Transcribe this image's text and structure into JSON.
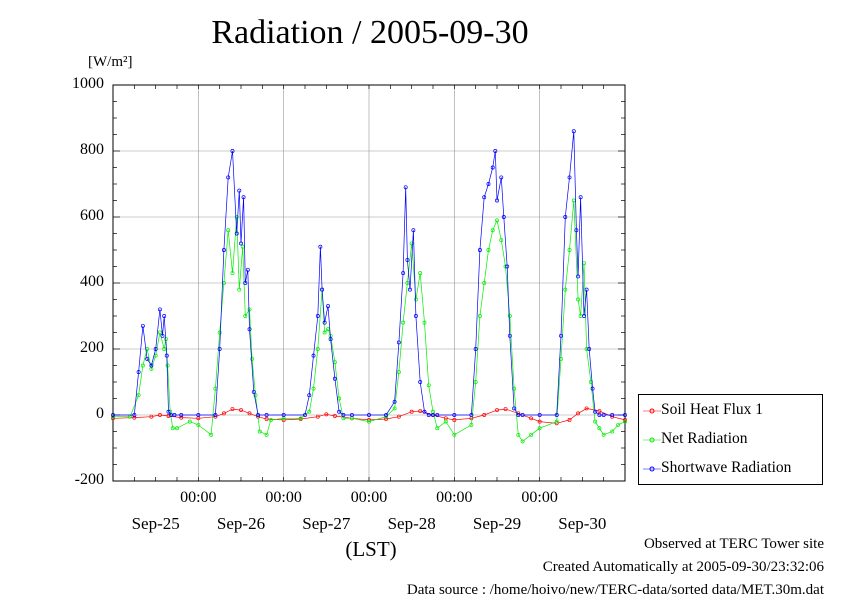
{
  "chart_data": {
    "type": "line",
    "title": "Radiation / 2005-09-30",
    "ylabel": "[W/m²]",
    "xlabel": "(LST)",
    "ylim": [
      -200,
      1000
    ],
    "yticks": [
      1000,
      800,
      600,
      400,
      200,
      0,
      -200
    ],
    "xlim_days": [
      0,
      6
    ],
    "x_time_labels": [
      "00:00",
      "00:00",
      "00:00",
      "00:00",
      "00:00"
    ],
    "x_date_labels": [
      "Sep-25",
      "Sep-26",
      "Sep-27",
      "Sep-28",
      "Sep-29",
      "Sep-30"
    ],
    "grid": true,
    "legend_position": "bottom-right, outside plot",
    "series": [
      {
        "name": "Soil Heat Flux 1",
        "color": "#ff0000",
        "x": [
          0.0,
          0.25,
          0.45,
          0.55,
          0.65,
          0.8,
          1.0,
          1.2,
          1.3,
          1.4,
          1.5,
          1.6,
          1.7,
          1.8,
          2.0,
          2.2,
          2.4,
          2.5,
          2.6,
          2.8,
          3.0,
          3.2,
          3.35,
          3.5,
          3.6,
          3.75,
          3.9,
          4.0,
          4.2,
          4.35,
          4.5,
          4.6,
          4.75,
          4.9,
          5.0,
          5.2,
          5.35,
          5.45,
          5.55,
          5.7,
          5.85,
          6.0
        ],
        "y": [
          -10,
          -8,
          -5,
          0,
          -3,
          -8,
          -10,
          -5,
          5,
          18,
          15,
          5,
          -5,
          -12,
          -15,
          -12,
          -5,
          2,
          -3,
          -10,
          -15,
          -12,
          -5,
          10,
          12,
          0,
          -10,
          -15,
          -10,
          0,
          15,
          18,
          5,
          -10,
          -20,
          -25,
          -15,
          5,
          20,
          12,
          -5,
          -15
        ]
      },
      {
        "name": "Net Radiation",
        "color": "#00ee00",
        "x": [
          0.0,
          0.2,
          0.3,
          0.35,
          0.4,
          0.45,
          0.5,
          0.55,
          0.6,
          0.62,
          0.64,
          0.67,
          0.7,
          0.75,
          0.9,
          1.0,
          1.15,
          1.2,
          1.25,
          1.3,
          1.35,
          1.4,
          1.45,
          1.48,
          1.52,
          1.55,
          1.6,
          1.63,
          1.67,
          1.72,
          1.8,
          1.85,
          2.0,
          2.2,
          2.3,
          2.35,
          2.4,
          2.45,
          2.48,
          2.52,
          2.55,
          2.6,
          2.65,
          2.7,
          2.8,
          3.0,
          3.2,
          3.3,
          3.35,
          3.4,
          3.45,
          3.5,
          3.55,
          3.6,
          3.65,
          3.7,
          3.75,
          3.8,
          3.9,
          4.0,
          4.2,
          4.25,
          4.3,
          4.35,
          4.4,
          4.45,
          4.5,
          4.55,
          4.6,
          4.65,
          4.7,
          4.75,
          4.8,
          4.9,
          5.0,
          5.2,
          5.25,
          5.3,
          5.35,
          5.4,
          5.45,
          5.48,
          5.52,
          5.55,
          5.6,
          5.65,
          5.7,
          5.75,
          5.85,
          5.92,
          6.0
        ],
        "y": [
          -5,
          -5,
          60,
          150,
          200,
          140,
          180,
          250,
          200,
          230,
          150,
          10,
          -40,
          -40,
          -20,
          -30,
          -60,
          80,
          250,
          400,
          560,
          430,
          600,
          380,
          510,
          300,
          320,
          170,
          60,
          -50,
          -60,
          -15,
          -10,
          -10,
          10,
          80,
          200,
          380,
          250,
          260,
          240,
          160,
          50,
          -10,
          -10,
          -20,
          -5,
          20,
          130,
          280,
          400,
          520,
          350,
          430,
          280,
          90,
          10,
          -40,
          -20,
          -60,
          -30,
          100,
          300,
          400,
          500,
          560,
          590,
          530,
          450,
          300,
          80,
          -60,
          -80,
          -60,
          -40,
          -20,
          170,
          380,
          500,
          650,
          350,
          300,
          460,
          200,
          100,
          -20,
          -40,
          -60,
          -50,
          -30,
          -20
        ]
      },
      {
        "name": "Shortwave Radiation",
        "color": "#0000ff",
        "x": [
          0.0,
          0.25,
          0.3,
          0.35,
          0.4,
          0.45,
          0.5,
          0.55,
          0.58,
          0.6,
          0.63,
          0.65,
          0.68,
          0.72,
          0.8,
          1.0,
          1.2,
          1.25,
          1.3,
          1.35,
          1.4,
          1.45,
          1.48,
          1.5,
          1.53,
          1.55,
          1.58,
          1.6,
          1.65,
          1.7,
          1.8,
          2.0,
          2.25,
          2.3,
          2.35,
          2.4,
          2.43,
          2.45,
          2.48,
          2.52,
          2.55,
          2.6,
          2.65,
          2.7,
          2.8,
          3.0,
          3.2,
          3.3,
          3.35,
          3.4,
          3.43,
          3.45,
          3.48,
          3.52,
          3.55,
          3.6,
          3.65,
          3.7,
          3.75,
          3.8,
          4.0,
          4.2,
          4.25,
          4.3,
          4.35,
          4.4,
          4.45,
          4.48,
          4.5,
          4.55,
          4.58,
          4.62,
          4.65,
          4.7,
          4.75,
          4.8,
          5.0,
          5.2,
          5.25,
          5.3,
          5.35,
          5.4,
          5.43,
          5.45,
          5.48,
          5.52,
          5.55,
          5.58,
          5.62,
          5.65,
          5.7,
          5.75,
          5.85,
          6.0
        ],
        "y": [
          0,
          0,
          130,
          270,
          170,
          150,
          200,
          320,
          240,
          300,
          180,
          10,
          0,
          0,
          0,
          0,
          0,
          200,
          500,
          720,
          800,
          550,
          680,
          520,
          660,
          400,
          440,
          260,
          70,
          0,
          0,
          0,
          0,
          60,
          180,
          300,
          510,
          380,
          280,
          330,
          230,
          110,
          10,
          0,
          0,
          0,
          0,
          40,
          220,
          430,
          690,
          470,
          380,
          560,
          300,
          100,
          10,
          0,
          0,
          0,
          0,
          0,
          200,
          500,
          660,
          700,
          750,
          800,
          650,
          720,
          600,
          450,
          240,
          20,
          0,
          0,
          0,
          0,
          240,
          600,
          720,
          860,
          560,
          420,
          660,
          300,
          380,
          200,
          80,
          10,
          0,
          0,
          0,
          0
        ]
      }
    ]
  },
  "footer": {
    "site": "Observed at TERC Tower site",
    "created": "Created Automatically at 2005-09-30/23:32:06",
    "source": "Data source : /home/hoivo/new/TERC-data/sorted  data/MET.30m.dat"
  }
}
